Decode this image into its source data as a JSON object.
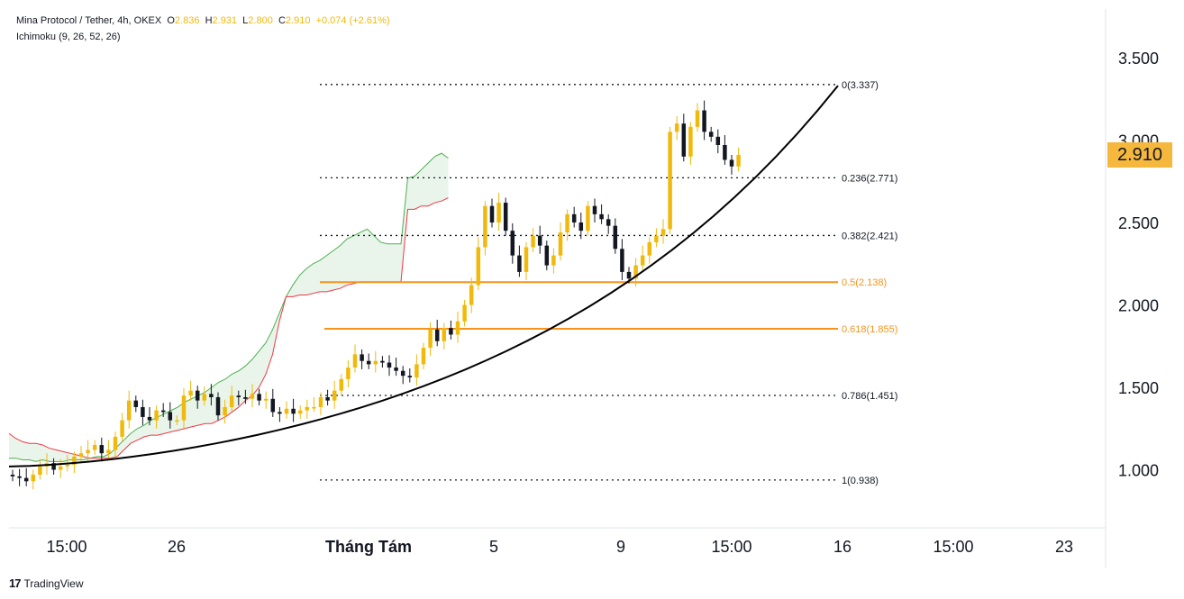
{
  "header": {
    "symbol": "Mina Protocol / Tether, 4h, OKEX",
    "o_label": "O",
    "o_value": "2.836",
    "h_label": "H",
    "h_value": "2.931",
    "l_label": "L",
    "l_value": "2.800",
    "c_label": "C",
    "c_value": "2.910",
    "change": "+0.074 (+2.61%)",
    "indicator": "Ichimoku (9, 26, 52, 26)"
  },
  "brand": {
    "name": "TradingView",
    "logo_icon": "tradingview-logo-icon"
  },
  "colors": {
    "bull": "#f0b90b",
    "bear": "#131722",
    "cloud_green": "#4caf50",
    "cloud_red": "#f23645",
    "fib_highlight": "#f7931a",
    "badge": "#f5b83d"
  },
  "chart_data": {
    "type": "candlestick",
    "x_ticks": [
      "15:00",
      "26",
      "Tháng Tám",
      "5",
      "9",
      "15:00",
      "16",
      "15:00",
      "23"
    ],
    "y_ticks": [
      "3.500",
      "3.000",
      "2.500",
      "2.000",
      "1.500",
      "1.000"
    ],
    "ylim": [
      0.65,
      3.85
    ],
    "last_price": "2.910",
    "fib_levels": [
      {
        "label": "0(3.337)",
        "value": 3.337,
        "highlight": false
      },
      {
        "label": "0.236(2.771)",
        "value": 2.771,
        "highlight": false
      },
      {
        "label": "0.382(2.421)",
        "value": 2.421,
        "highlight": false
      },
      {
        "label": "0.5(2.138)",
        "value": 2.138,
        "highlight": true
      },
      {
        "label": "0.618(1.855)",
        "value": 1.855,
        "highlight": true
      },
      {
        "label": "0.786(1.451)",
        "value": 1.451,
        "highlight": false
      },
      {
        "label": "1(0.938)",
        "value": 0.938,
        "highlight": false
      }
    ],
    "candles_close": [
      0.96,
      0.95,
      0.93,
      0.97,
      1.02,
      1.04,
      1.0,
      1.02,
      1.03,
      1.08,
      1.1,
      1.12,
      1.15,
      1.1,
      1.12,
      1.2,
      1.3,
      1.42,
      1.38,
      1.32,
      1.3,
      1.36,
      1.35,
      1.3,
      1.3,
      1.45,
      1.48,
      1.42,
      1.46,
      1.44,
      1.33,
      1.38,
      1.45,
      1.44,
      1.43,
      1.46,
      1.42,
      1.43,
      1.35,
      1.34,
      1.37,
      1.34,
      1.36,
      1.38,
      1.38,
      1.44,
      1.42,
      1.48,
      1.55,
      1.62,
      1.7,
      1.66,
      1.64,
      1.66,
      1.65,
      1.62,
      1.6,
      1.57,
      1.56,
      1.64,
      1.74,
      1.85,
      1.78,
      1.86,
      1.82,
      1.9,
      2.0,
      2.12,
      2.35,
      2.6,
      2.5,
      2.62,
      2.45,
      2.3,
      2.2,
      2.35,
      2.42,
      2.36,
      2.24,
      2.3,
      2.44,
      2.55,
      2.5,
      2.45,
      2.6,
      2.55,
      2.52,
      2.48,
      2.34,
      2.2,
      2.16,
      2.24,
      2.3,
      2.38,
      2.42,
      2.46,
      3.05,
      3.1,
      2.9,
      3.08,
      3.18,
      3.05,
      3.02,
      2.97,
      2.88,
      2.84,
      2.91
    ],
    "cloud_a": [
      1.07,
      1.07,
      1.06,
      1.06,
      1.05,
      1.06,
      1.05,
      1.05,
      1.05,
      1.06,
      1.06,
      1.06,
      1.07,
      1.08,
      1.08,
      1.1,
      1.14,
      1.18,
      1.22,
      1.25,
      1.27,
      1.3,
      1.32,
      1.34,
      1.36,
      1.38,
      1.41,
      1.43,
      1.45,
      1.47,
      1.5,
      1.53,
      1.55,
      1.58,
      1.6,
      1.63,
      1.67,
      1.72,
      1.77,
      1.85,
      1.95,
      2.05,
      2.12,
      2.18,
      2.22,
      2.25,
      2.27,
      2.3,
      2.33,
      2.36,
      2.4,
      2.42,
      2.44,
      2.46,
      2.42,
      2.38,
      2.37,
      2.37,
      2.37,
      2.77,
      2.78,
      2.82,
      2.86,
      2.9,
      2.92,
      2.89
    ],
    "cloud_b": [
      1.22,
      1.19,
      1.17,
      1.16,
      1.16,
      1.15,
      1.13,
      1.12,
      1.11,
      1.1,
      1.09,
      1.08,
      1.07,
      1.07,
      1.07,
      1.07,
      1.08,
      1.12,
      1.16,
      1.18,
      1.2,
      1.21,
      1.21,
      1.22,
      1.23,
      1.24,
      1.25,
      1.26,
      1.27,
      1.28,
      1.28,
      1.3,
      1.32,
      1.35,
      1.38,
      1.42,
      1.45,
      1.5,
      1.58,
      1.7,
      1.9,
      2.05,
      2.05,
      2.06,
      2.06,
      2.07,
      2.08,
      2.08,
      2.09,
      2.1,
      2.12,
      2.13,
      2.14,
      2.14,
      2.14,
      2.14,
      2.14,
      2.14,
      2.14,
      2.58,
      2.58,
      2.6,
      2.6,
      2.62,
      2.63,
      2.65
    ]
  }
}
